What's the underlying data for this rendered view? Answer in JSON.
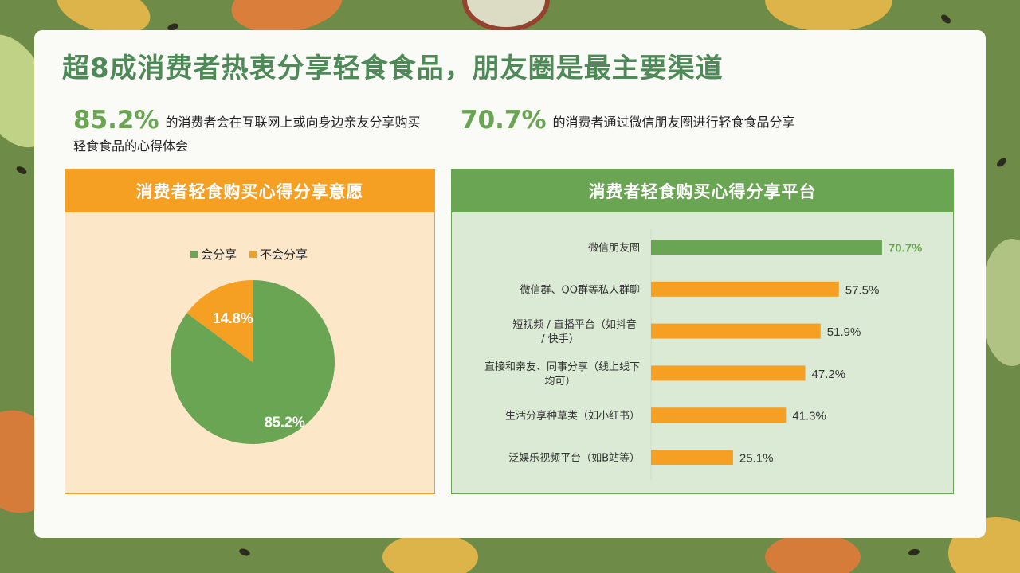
{
  "title": "超8成消费者热衷分享轻食食品，朋友圈是最主要渠道",
  "stats": [
    {
      "value": "85.2%",
      "text": "的消费者会在互联网上或向身边亲友分享购买轻食食品的心得体会"
    },
    {
      "value": "70.7%",
      "text": "的消费者通过微信朋友圈进行轻食食品分享"
    }
  ],
  "colors": {
    "green": "#6aa553",
    "orange": "#f5a023",
    "title_green": "#4d8a57"
  },
  "chart_data": [
    {
      "type": "pie",
      "title": "消费者轻食购买心得分享意愿",
      "legend_position": "top",
      "slices": [
        {
          "name": "会分享",
          "value": 85.2,
          "label": "85.2%",
          "color": "#6aa553"
        },
        {
          "name": "不会分享",
          "value": 14.8,
          "label": "14.8%",
          "color": "#f5a023"
        }
      ]
    },
    {
      "type": "bar",
      "orientation": "horizontal",
      "title": "消费者轻食购买心得分享平台",
      "xlim": [
        0,
        100
      ],
      "categories": [
        "微信朋友圈",
        "微信群、QQ群等私人群聊",
        "短视频 / 直播平台（如抖音 / 快手）",
        "直接和亲友、同事分享（线上线下均可）",
        "生活分享种草类（如小红书）",
        "泛娱乐视频平台（如B站等）"
      ],
      "values": [
        70.7,
        57.5,
        51.9,
        47.2,
        41.3,
        25.1
      ],
      "value_labels": [
        "70.7%",
        "57.5%",
        "51.9%",
        "47.2%",
        "41.3%",
        "25.1%"
      ],
      "highlight_index": 0
    }
  ]
}
